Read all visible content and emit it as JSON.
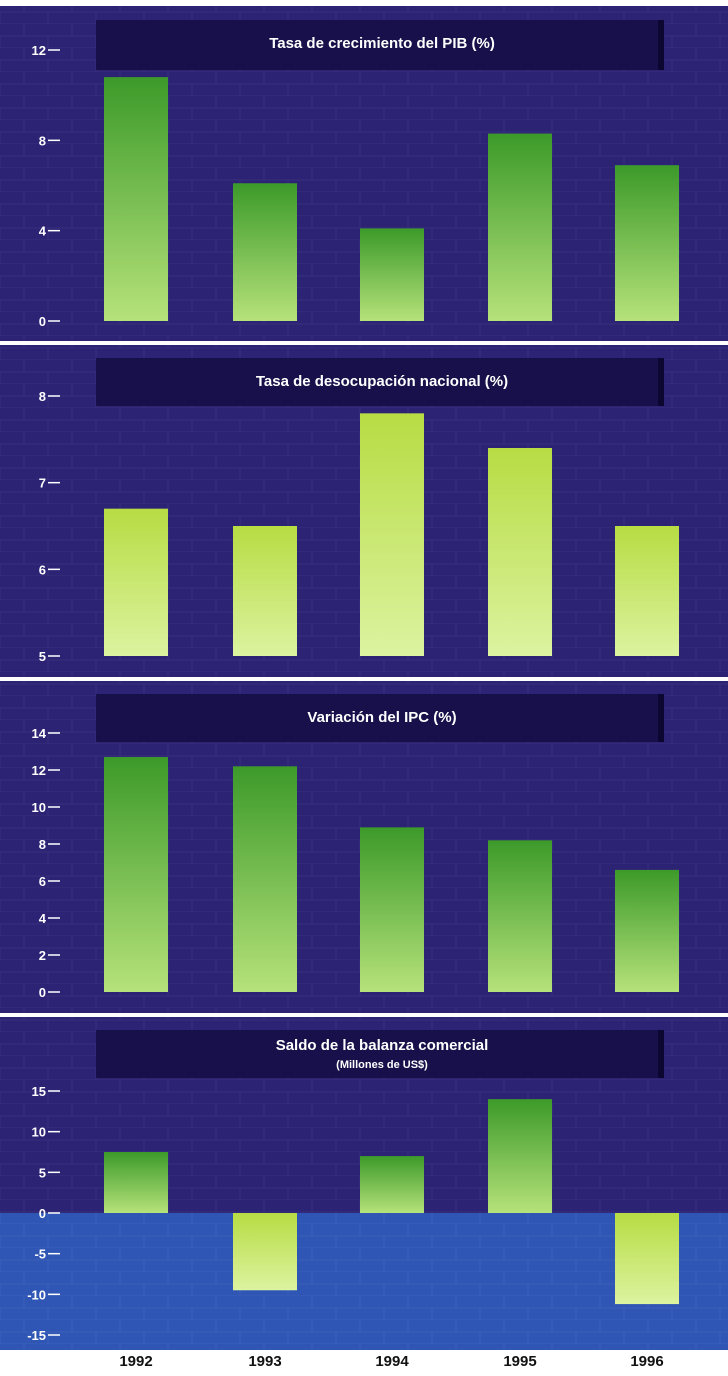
{
  "colors": {
    "panel_background": "#2c2374",
    "title_bar": "#17104a",
    "negative_band": "#2f56b4",
    "bar_top": "#3c9a2a",
    "bar_bottom": "#b6e27a",
    "bar_light_top": "#b7dc43",
    "bar_light_bottom": "#dcf3a0",
    "separator": "#ffffff",
    "text": "#ffffff"
  },
  "x_axis": {
    "years": [
      "1992",
      "1993",
      "1994",
      "1995",
      "1996"
    ]
  },
  "chart_data": [
    {
      "type": "bar",
      "title": "Tasa de crecimiento del PIB (%)",
      "subtitle": "",
      "categories": [
        "1992",
        "1993",
        "1994",
        "1995",
        "1996"
      ],
      "values": [
        10.8,
        6.1,
        4.1,
        8.3,
        6.9
      ],
      "yticks": [
        "0",
        "4",
        "8",
        "12"
      ],
      "ylim": [
        0,
        12
      ],
      "grid": false
    },
    {
      "type": "bar",
      "title": "Tasa de desocupación nacional (%)",
      "subtitle": "",
      "categories": [
        "1992",
        "1993",
        "1994",
        "1995",
        "1996"
      ],
      "values": [
        6.7,
        6.5,
        7.8,
        7.4,
        6.5
      ],
      "yticks": [
        "5",
        "6",
        "7",
        "8"
      ],
      "ylim": [
        5,
        8
      ],
      "grid": false
    },
    {
      "type": "bar",
      "title": "Variación del IPC  (%)",
      "subtitle": "",
      "categories": [
        "1992",
        "1993",
        "1994",
        "1995",
        "1996"
      ],
      "values": [
        12.7,
        12.2,
        8.9,
        8.2,
        6.6
      ],
      "yticks": [
        "0",
        "2",
        "4",
        "6",
        "8",
        "10",
        "12",
        "14"
      ],
      "ylim": [
        0,
        14
      ],
      "grid": false
    },
    {
      "type": "bar",
      "title": "Saldo de la balanza comercial",
      "subtitle": "(Millones de US$)",
      "categories": [
        "1992",
        "1993",
        "1994",
        "1995",
        "1996"
      ],
      "values": [
        7.5,
        -9.5,
        7.0,
        14.0,
        -11.2
      ],
      "yticks": [
        "15",
        "10",
        "5",
        "0",
        "-5",
        "-10",
        "-15"
      ],
      "ylim": [
        -15,
        15
      ],
      "grid": false
    }
  ]
}
